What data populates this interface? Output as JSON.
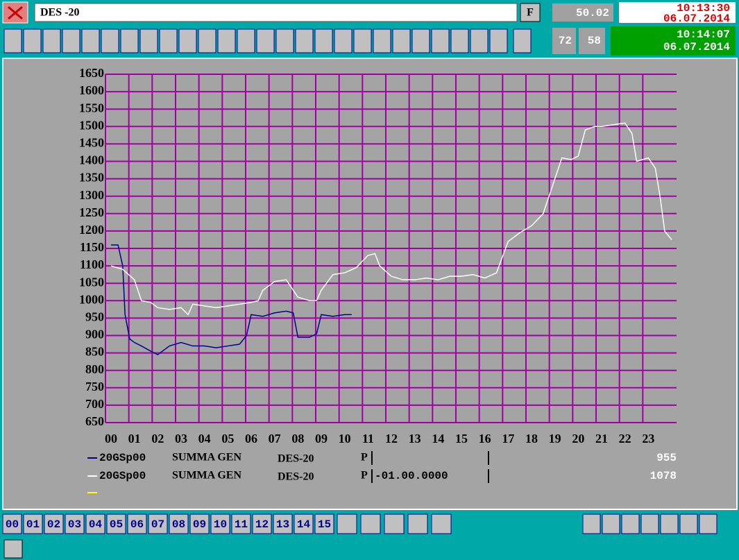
{
  "window": {
    "title": "DES -20",
    "f_button": "F",
    "frequency": "50.02",
    "clock_top": {
      "time": "10:13:30",
      "date": "06.07.2014"
    },
    "counters": [
      "72",
      "58"
    ],
    "clock_bottom": {
      "time": "10:14:07",
      "date": "06.07.2014"
    },
    "page_buttons": [
      "00",
      "01",
      "02",
      "03",
      "04",
      "05",
      "06",
      "07",
      "08",
      "09",
      "10",
      "11",
      "12",
      "13",
      "14",
      "15"
    ]
  },
  "chart_data": {
    "type": "line",
    "xlim": [
      0,
      24
    ],
    "ylim": [
      650,
      1650
    ],
    "xticks": [
      {
        "value": 0,
        "label": "00"
      },
      {
        "value": 1,
        "label": "01"
      },
      {
        "value": 2,
        "label": "02"
      },
      {
        "value": 3,
        "label": "03"
      },
      {
        "value": 4,
        "label": "04"
      },
      {
        "value": 5,
        "label": "05"
      },
      {
        "value": 6,
        "label": "06"
      },
      {
        "value": 7,
        "label": "07"
      },
      {
        "value": 8,
        "label": "08"
      },
      {
        "value": 9,
        "label": "09"
      },
      {
        "value": 10,
        "label": "10"
      },
      {
        "value": 11,
        "label": "11"
      },
      {
        "value": 12,
        "label": "12"
      },
      {
        "value": 13,
        "label": "13"
      },
      {
        "value": 14,
        "label": "14"
      },
      {
        "value": 15,
        "label": "15"
      },
      {
        "value": 16,
        "label": "16"
      },
      {
        "value": 17,
        "label": "17"
      },
      {
        "value": 18,
        "label": "18"
      },
      {
        "value": 19,
        "label": "19"
      },
      {
        "value": 20,
        "label": "20"
      },
      {
        "value": 21,
        "label": "21"
      },
      {
        "value": 22,
        "label": "22"
      },
      {
        "value": 23,
        "label": "23"
      }
    ],
    "yticks": [
      650,
      700,
      750,
      800,
      850,
      900,
      950,
      1000,
      1050,
      1100,
      1150,
      1200,
      1250,
      1300,
      1350,
      1400,
      1450,
      1500,
      1550,
      1600,
      1650
    ],
    "grid": true,
    "grid_color": "#a000a0",
    "background": "#a4a4a4",
    "series": [
      {
        "name": "20GSp00",
        "description": "SUMMA GEN",
        "station": "DES-20",
        "parameter": "P",
        "current": 955,
        "color": "#00008b",
        "x": [
          0,
          0.3,
          0.5,
          0.6,
          0.8,
          1,
          1.3,
          1.7,
          2,
          2.5,
          3,
          3.5,
          4,
          4.5,
          5,
          5.5,
          5.8,
          6,
          6.5,
          7,
          7.5,
          7.8,
          8,
          8.5,
          8.8,
          9,
          9.5,
          10,
          10.3
        ],
        "values": [
          1160,
          1160,
          1100,
          960,
          890,
          880,
          870,
          855,
          845,
          870,
          880,
          870,
          870,
          865,
          870,
          875,
          900,
          960,
          955,
          965,
          970,
          965,
          895,
          895,
          905,
          960,
          955,
          960,
          960
        ]
      },
      {
        "name": "20GSp00",
        "description": "SUMMA GEN",
        "station": "DES-20",
        "parameter": "P",
        "parameter_value": "-01.00.0000",
        "current": 1078,
        "color": "#ffffff",
        "x": [
          0,
          0.5,
          1,
          1.3,
          1.7,
          2,
          2.5,
          3,
          3.3,
          3.5,
          4,
          4.5,
          5,
          5.5,
          6,
          6.3,
          6.5,
          7,
          7.5,
          7.7,
          8,
          8.5,
          8.8,
          9,
          9.5,
          10,
          10.5,
          11,
          11.3,
          11.5,
          12,
          12.5,
          13,
          13.5,
          14,
          14.5,
          15,
          15.5,
          16,
          16.5,
          17,
          17.5,
          18,
          18.5,
          19,
          19.3,
          19.7,
          20,
          20.3,
          20.7,
          21,
          21.5,
          22,
          22.3,
          22.5,
          23,
          23.3,
          23.5,
          23.7,
          24
        ],
        "values": [
          1100,
          1090,
          1060,
          1000,
          995,
          980,
          975,
          980,
          960,
          990,
          985,
          980,
          985,
          990,
          995,
          1000,
          1030,
          1055,
          1060,
          1040,
          1010,
          1000,
          1000,
          1030,
          1075,
          1080,
          1095,
          1130,
          1135,
          1100,
          1070,
          1060,
          1060,
          1065,
          1060,
          1070,
          1070,
          1075,
          1065,
          1080,
          1170,
          1195,
          1215,
          1250,
          1350,
          1410,
          1405,
          1415,
          1490,
          1500,
          1500,
          1505,
          1510,
          1480,
          1400,
          1410,
          1380,
          1300,
          1200,
          1175
        ]
      }
    ]
  }
}
